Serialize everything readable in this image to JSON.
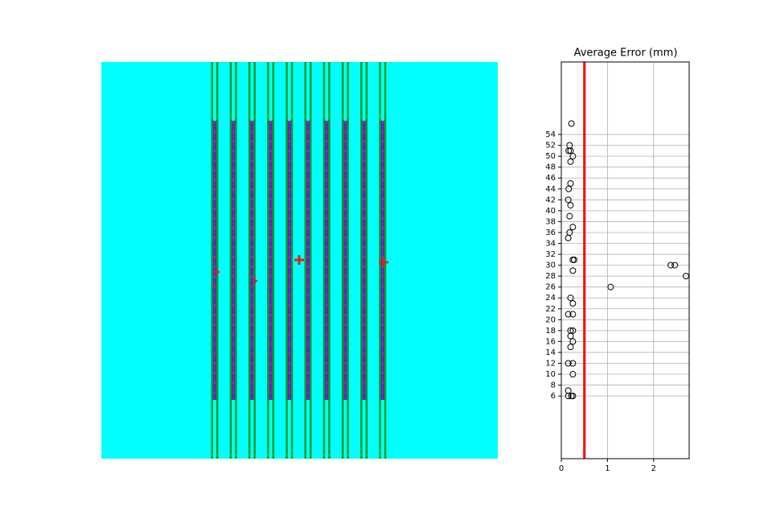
{
  "chart_data": {
    "type": "scatter",
    "title": "Average Error (mm)",
    "x": [
      0.22,
      0.18,
      0.2,
      0.16,
      0.25,
      0.2,
      0.16,
      0.2,
      0.15,
      0.2,
      0.18,
      0.25,
      0.18,
      0.15,
      0.25,
      0.28,
      0.25,
      0.2,
      0.25,
      0.25,
      0.15,
      0.2,
      0.25,
      0.2,
      0.25,
      0.2,
      0.25,
      0.15,
      0.25,
      0.15,
      0.15,
      0.22,
      0.25,
      1.07,
      2.37,
      2.46,
      2.7
    ],
    "values": [
      56,
      52,
      51,
      51,
      50,
      49,
      44,
      45,
      42,
      41,
      39,
      37,
      36,
      35,
      31,
      31,
      29,
      24,
      23,
      21,
      21,
      18,
      18,
      17,
      16,
      15,
      12,
      12,
      10,
      7,
      6,
      6,
      6,
      26,
      30,
      30,
      28
    ],
    "threshold": 0.5,
    "threshold_color": "#ff0000",
    "xlim": [
      0,
      2.77
    ],
    "xticks": [
      0,
      1,
      2
    ],
    "ylim": [
      -5.5,
      67.3
    ],
    "yticks": [
      6,
      8,
      10,
      12,
      14,
      16,
      18,
      20,
      22,
      24,
      26,
      28,
      30,
      32,
      34,
      36,
      38,
      40,
      42,
      44,
      46,
      48,
      50,
      52,
      54
    ],
    "grid": true
  }
}
